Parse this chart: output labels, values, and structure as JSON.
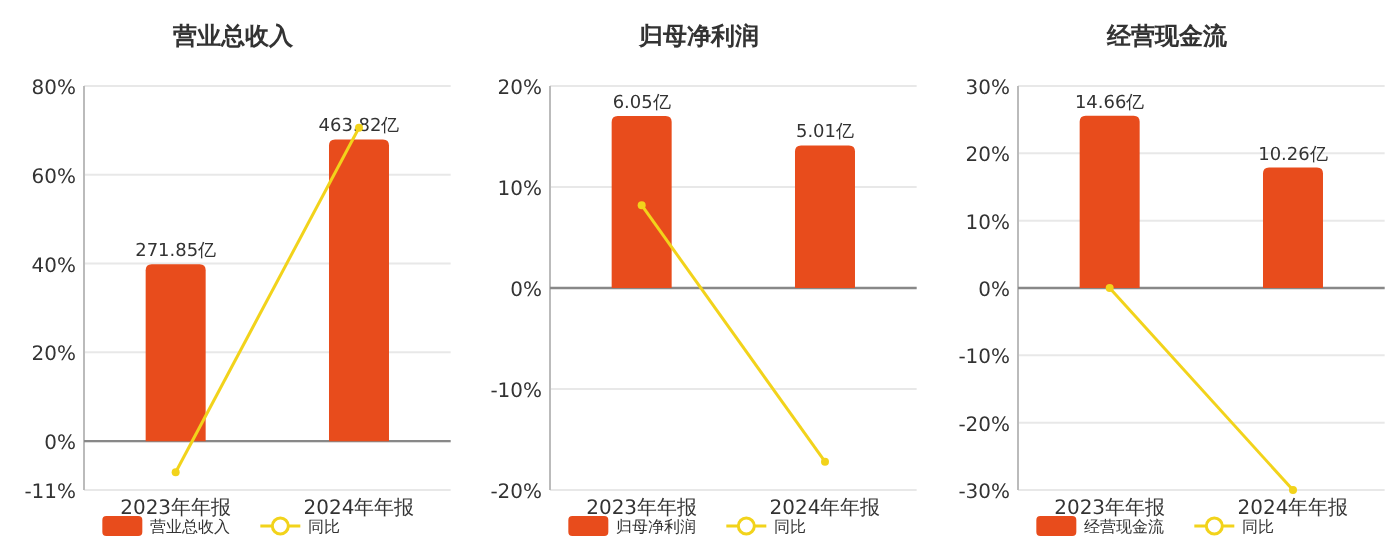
{
  "chart_data": [
    {
      "type": "bar",
      "title": "营业总收入",
      "categories": [
        "2023年年报",
        "2024年年报"
      ],
      "series": [
        {
          "name": "营业总收入",
          "axis": "y2",
          "color": "#e84c1c",
          "values": [
            271.85,
            463.82
          ],
          "value_labels": [
            "271.85亿",
            "463.82亿"
          ]
        },
        {
          "name": "同比",
          "type": "line",
          "color": "#f2d31b",
          "values": [
            -7.0,
            70.6
          ],
          "marker": "circle"
        }
      ],
      "ylim": [
        -11,
        80
      ],
      "yticks": [
        {
          "value": -11,
          "label": "-11%"
        },
        {
          "value": 0,
          "label": "0%"
        },
        {
          "value": 20,
          "label": "20%"
        },
        {
          "value": 40,
          "label": "40%"
        },
        {
          "value": 60,
          "label": "60%"
        },
        {
          "value": 80,
          "label": "80%"
        }
      ],
      "y2lim": [
        -75,
        546
      ],
      "grid": "y",
      "legend": "bottom"
    },
    {
      "type": "bar",
      "title": "归母净利润",
      "categories": [
        "2023年年报",
        "2024年年报"
      ],
      "series": [
        {
          "name": "归母净利润",
          "axis": "y2",
          "color": "#e84c1c",
          "values": [
            6.05,
            5.01
          ],
          "value_labels": [
            "6.05亿",
            "5.01亿"
          ]
        },
        {
          "name": "同比",
          "type": "line",
          "color": "#f2d31b",
          "values": [
            8.2,
            -17.2
          ],
          "marker": "circle"
        }
      ],
      "ylim": [
        -20,
        20
      ],
      "yticks": [
        {
          "value": -20,
          "label": "-20%"
        },
        {
          "value": -10,
          "label": "-10%"
        },
        {
          "value": 0,
          "label": "0%"
        },
        {
          "value": 10,
          "label": "10%"
        },
        {
          "value": 20,
          "label": "20%"
        }
      ],
      "y2lim": [
        -7.1,
        7.1
      ],
      "grid": "y",
      "legend": "bottom"
    },
    {
      "type": "bar",
      "title": "经营现金流",
      "categories": [
        "2023年年报",
        "2024年年报"
      ],
      "series": [
        {
          "name": "经营现金流",
          "axis": "y2",
          "color": "#e84c1c",
          "values": [
            14.66,
            10.26
          ],
          "value_labels": [
            "14.66亿",
            "10.26亿"
          ]
        },
        {
          "name": "同比",
          "type": "line",
          "color": "#f2d31b",
          "values": [
            0.0,
            -30.0
          ],
          "marker": "circle"
        }
      ],
      "ylim": [
        -30,
        30
      ],
      "yticks": [
        {
          "value": -30,
          "label": "-30%"
        },
        {
          "value": -20,
          "label": "-20%"
        },
        {
          "value": -10,
          "label": "-10%"
        },
        {
          "value": 0,
          "label": "0%"
        },
        {
          "value": 10,
          "label": "10%"
        },
        {
          "value": 20,
          "label": "20%"
        },
        {
          "value": 30,
          "label": "30%"
        }
      ],
      "y2lim": [
        -17.2,
        17.2
      ],
      "grid": "y",
      "legend": "bottom"
    }
  ]
}
